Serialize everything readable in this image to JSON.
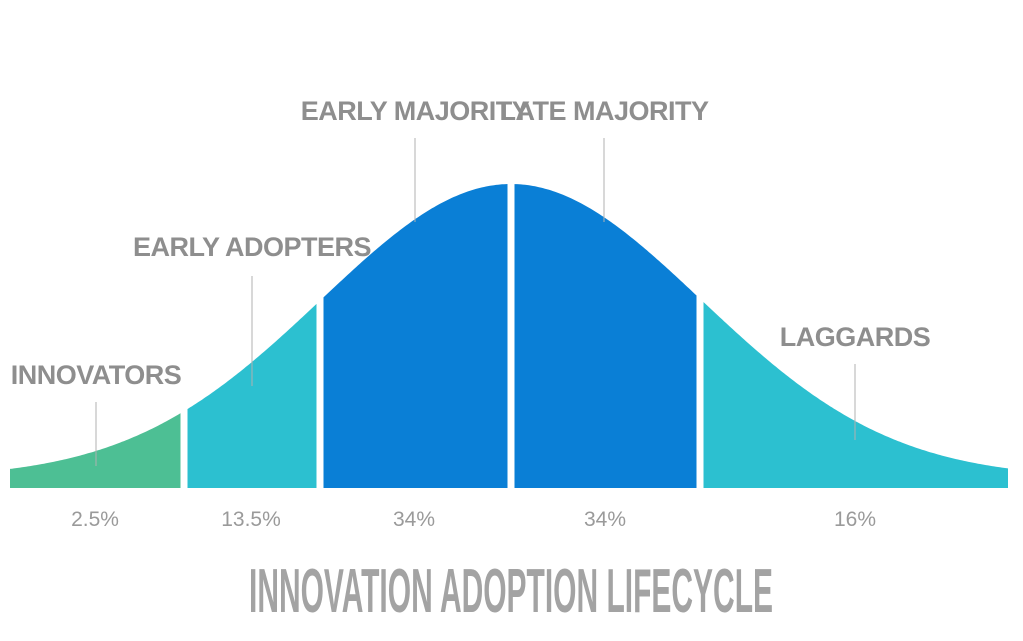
{
  "title": "INNOVATION ADOPTION LIFECYCLE",
  "segments": [
    {
      "name": "INNOVATORS",
      "percent": "2.5%",
      "share": 2.5,
      "color": "#4dbf94"
    },
    {
      "name": "EARLY ADOPTERS",
      "percent": "13.5%",
      "share": 13.5,
      "color": "#2cc0d0"
    },
    {
      "name": "EARLY MAJORITY",
      "percent": "34%",
      "share": 34,
      "color": "#0a7fd6"
    },
    {
      "name": "LATE MAJORITY",
      "percent": "34%",
      "share": 34,
      "color": "#0a7fd6"
    },
    {
      "name": "LAGGARDS",
      "percent": "16%",
      "share": 16,
      "color": "#2cc0d0"
    }
  ],
  "colors": {
    "label_text": "#8e8e8e",
    "percent_text": "#9a9a9a",
    "title_text": "#a3a3a3",
    "leader_line": "#b0b0b0",
    "divider": "#ffffff"
  }
}
